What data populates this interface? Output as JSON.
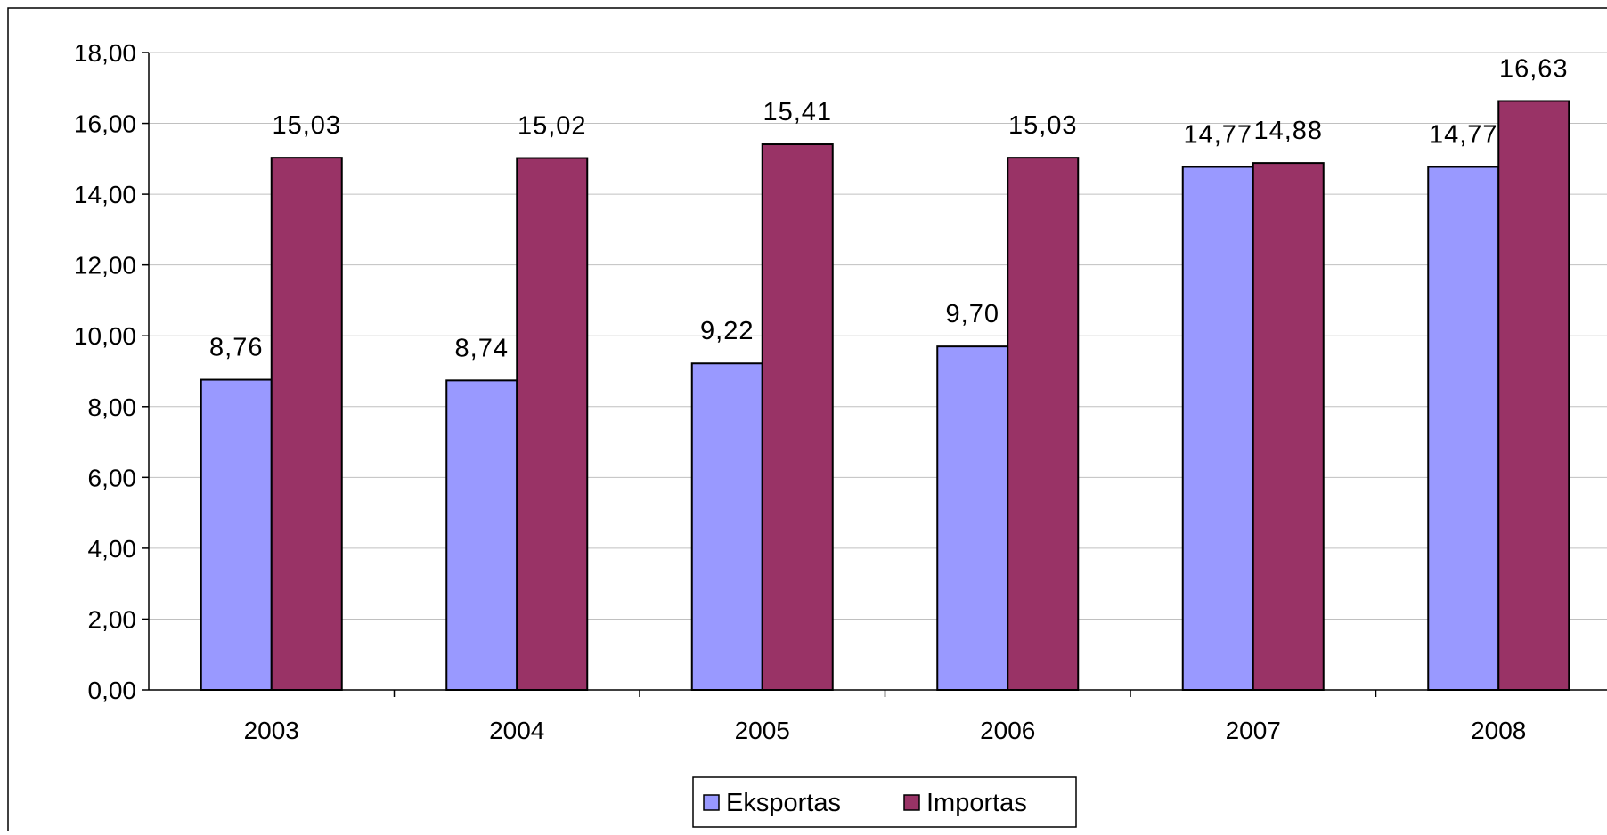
{
  "chart_data": {
    "type": "bar",
    "categories": [
      "2003",
      "2004",
      "2005",
      "2006",
      "2007",
      "2008"
    ],
    "series": [
      {
        "name": "Eksportas",
        "values": [
          8.76,
          8.74,
          9.22,
          9.7,
          14.77,
          14.77
        ],
        "labels": [
          "8,76",
          "8,74",
          "9,22",
          "9,70",
          "14,77",
          "14,77"
        ],
        "color": "#9999FF"
      },
      {
        "name": "Importas",
        "values": [
          15.03,
          15.02,
          15.41,
          15.03,
          14.88,
          16.63
        ],
        "labels": [
          "15,03",
          "15,02",
          "15,41",
          "15,03",
          "14,88",
          "16,63"
        ],
        "color": "#993366"
      }
    ],
    "ylim": [
      0,
      18
    ],
    "yticks": [
      "0,00",
      "2,00",
      "4,00",
      "6,00",
      "8,00",
      "10,00",
      "12,00",
      "14,00",
      "16,00",
      "18,00"
    ],
    "grid": true,
    "legend_position": "bottom",
    "gridline_color": "#C0C0C0",
    "frame_color": "#000000"
  }
}
